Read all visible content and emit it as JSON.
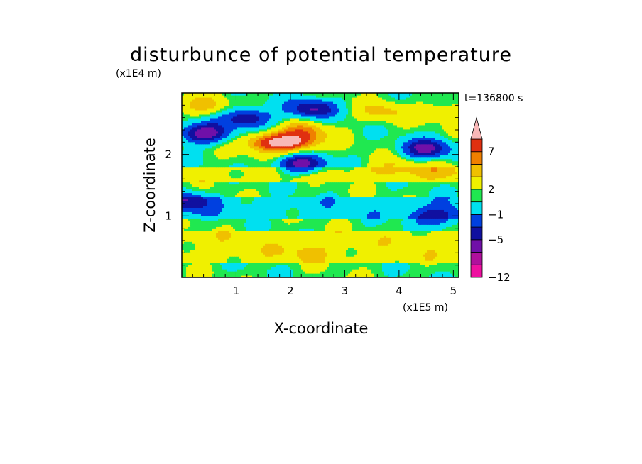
{
  "chart_data": {
    "type": "heatmap",
    "title": "disturbunce of potential temperature",
    "xlabel": "X-coordinate",
    "ylabel": "Z-coordinate",
    "x_unit": "(x1E5 m)",
    "y_unit": "(x1E4 m)",
    "time_label": "t=136800 s",
    "x_ticks": [
      "1",
      "2",
      "3",
      "4",
      "5"
    ],
    "x_tick_values": [
      1,
      2,
      3,
      4,
      5
    ],
    "y_ticks": [
      "1",
      "2"
    ],
    "y_tick_values": [
      1,
      2
    ],
    "xlim": [
      0,
      5.1
    ],
    "ylim": [
      0,
      3.0
    ],
    "colorbar": {
      "labels": [
        "7",
        "2",
        "−1",
        "−5",
        "−12"
      ],
      "label_values": [
        7,
        2,
        -1,
        -5,
        -12
      ],
      "levels": [
        -12,
        -9,
        -7,
        -5,
        -3,
        -1,
        1,
        2,
        4,
        5.5,
        7,
        9,
        12
      ],
      "colors": [
        "#ee10a0",
        "#b0109c",
        "#7010a8",
        "#1010a0",
        "#0040e0",
        "#00e0f0",
        "#20e850",
        "#f0f000",
        "#f0c000",
        "#f08000",
        "#e03010",
        "#f8b8b8"
      ]
    },
    "bands": [
      {
        "z": [
          0.0,
          0.25
        ],
        "value": 1.5
      },
      {
        "z": [
          0.25,
          0.75
        ],
        "value": 3.0
      },
      {
        "z": [
          0.75,
          0.95
        ],
        "value": 1.5
      },
      {
        "z": [
          0.95,
          1.3
        ],
        "value": 0.0
      },
      {
        "z": [
          1.3,
          1.55
        ],
        "value": 1.5
      },
      {
        "z": [
          1.55,
          1.8
        ],
        "value": 3.0
      },
      {
        "z": [
          1.8,
          2.4
        ],
        "value": 1.5
      },
      {
        "z": [
          2.4,
          3.0
        ],
        "value": 1.5
      }
    ],
    "anomalies": [
      {
        "x": 2.1,
        "z": 2.2,
        "value": 7.5
      },
      {
        "x": 1.6,
        "z": 2.2,
        "value": 8.0
      },
      {
        "x": 2.3,
        "z": 2.4,
        "value": 5.0
      },
      {
        "x": 3.7,
        "z": 2.7,
        "value": 4.5
      },
      {
        "x": 0.4,
        "z": 2.8,
        "value": 4.5
      },
      {
        "x": 4.9,
        "z": 2.7,
        "value": 4.0
      },
      {
        "x": 2.2,
        "z": 1.85,
        "value": -6.0
      },
      {
        "x": 2.4,
        "z": 2.75,
        "value": -5.0
      },
      {
        "x": 1.2,
        "z": 2.6,
        "value": -5.0
      },
      {
        "x": 4.5,
        "z": 2.1,
        "value": -5.5
      },
      {
        "x": 0.4,
        "z": 2.35,
        "value": -6.5
      },
      {
        "x": 0.1,
        "z": 1.25,
        "value": -5.0
      },
      {
        "x": 4.7,
        "z": 1.0,
        "value": -5.0
      },
      {
        "x": 2.3,
        "z": 0.45,
        "value": 4.5
      },
      {
        "x": 4.8,
        "z": 1.75,
        "value": 4.5
      },
      {
        "x": 3.9,
        "z": 1.8,
        "value": 4.0
      }
    ]
  }
}
